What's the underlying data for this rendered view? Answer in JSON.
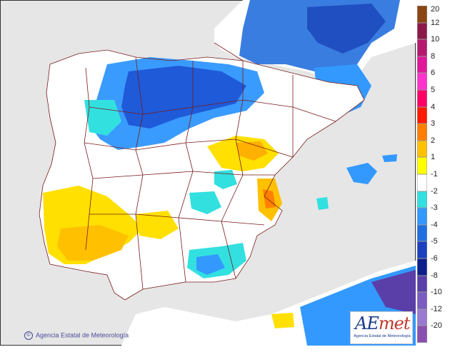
{
  "credit": {
    "symbol": "©",
    "text": "Agencia Estatal de Meteorología"
  },
  "logo": {
    "mark_a": "AE",
    "mark_b": "met",
    "subtitle": "Agencia Estatal de Meteorología"
  },
  "legend": {
    "items": [
      {
        "label": "20",
        "color": "#8b4513"
      },
      {
        "label": "12",
        "color": "#8b1a4a"
      },
      {
        "label": "10",
        "color": "#b5196e"
      },
      {
        "label": "8",
        "color": "#e0189a"
      },
      {
        "label": "6",
        "color": "#ff33cc"
      },
      {
        "label": "5",
        "color": "#ff0066"
      },
      {
        "label": "4",
        "color": "#ff1a00"
      },
      {
        "label": "3",
        "color": "#ff8000"
      },
      {
        "label": "2",
        "color": "#ffc000"
      },
      {
        "label": "1",
        "color": "#ffff00"
      },
      {
        "label": "-1",
        "color": "#ffffff"
      },
      {
        "label": "-2",
        "color": "#33e0e0"
      },
      {
        "label": "-3",
        "color": "#3399ff"
      },
      {
        "label": "-4",
        "color": "#1f6fe0"
      },
      {
        "label": "-5",
        "color": "#1a3fbf"
      },
      {
        "label": "-6",
        "color": "#0d1f8a"
      },
      {
        "label": "-8",
        "color": "#5a3fa8"
      },
      {
        "label": "-10",
        "color": "#7a5cc0"
      },
      {
        "label": "-12",
        "color": "#9a7ad0"
      },
      {
        "label": "-20",
        "color": "#8a50b0"
      }
    ]
  }
}
